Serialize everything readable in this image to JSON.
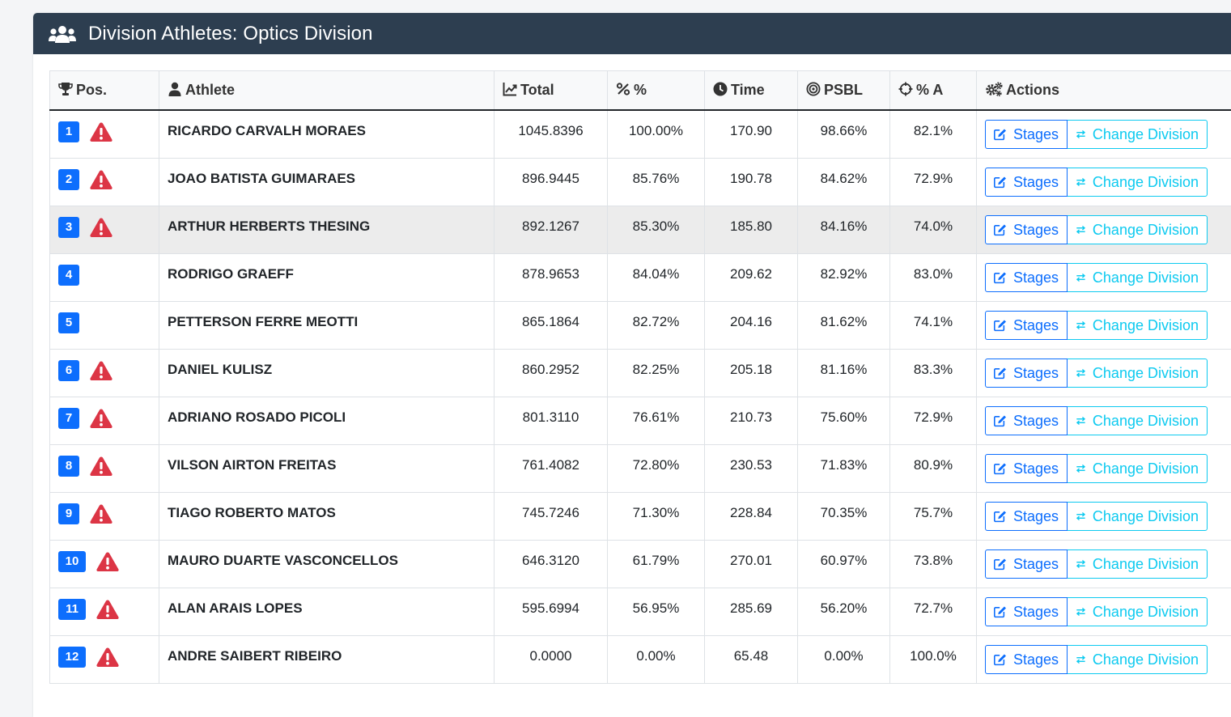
{
  "header": {
    "title": "Division Athletes: Optics Division",
    "icon": "users-icon"
  },
  "columns": {
    "pos": "Pos.",
    "athlete": "Athlete",
    "total": "Total",
    "pct": "%",
    "time": "Time",
    "psbl": "PSBL",
    "pct_a": "% A",
    "actions": "Actions"
  },
  "buttons": {
    "stages": "Stages",
    "change": "Change Division"
  },
  "colors": {
    "header_bg": "#2d3e50",
    "badge": "#0d6efd",
    "warning": "#dc3545",
    "stages_btn": "#0d6efd",
    "change_btn": "#0dcaf0"
  },
  "rows": [
    {
      "pos": "1",
      "warn": true,
      "name": "RICARDO CARVALH MORAES",
      "total": "1045.8396",
      "pct": "100.00%",
      "time": "170.90",
      "psbl": "98.66%",
      "pct_a": "82.1%"
    },
    {
      "pos": "2",
      "warn": true,
      "name": "JOAO BATISTA GUIMARAES",
      "total": "896.9445",
      "pct": "85.76%",
      "time": "190.78",
      "psbl": "84.62%",
      "pct_a": "72.9%"
    },
    {
      "pos": "3",
      "warn": true,
      "name": "ARTHUR HERBERTS THESING",
      "total": "892.1267",
      "pct": "85.30%",
      "time": "185.80",
      "psbl": "84.16%",
      "pct_a": "74.0%",
      "highlight": true
    },
    {
      "pos": "4",
      "warn": false,
      "name": "RODRIGO GRAEFF",
      "total": "878.9653",
      "pct": "84.04%",
      "time": "209.62",
      "psbl": "82.92%",
      "pct_a": "83.0%"
    },
    {
      "pos": "5",
      "warn": false,
      "name": "PETTERSON FERRE MEOTTI",
      "total": "865.1864",
      "pct": "82.72%",
      "time": "204.16",
      "psbl": "81.62%",
      "pct_a": "74.1%"
    },
    {
      "pos": "6",
      "warn": true,
      "name": "DANIEL KULISZ",
      "total": "860.2952",
      "pct": "82.25%",
      "time": "205.18",
      "psbl": "81.16%",
      "pct_a": "83.3%"
    },
    {
      "pos": "7",
      "warn": true,
      "name": "ADRIANO ROSADO PICOLI",
      "total": "801.3110",
      "pct": "76.61%",
      "time": "210.73",
      "psbl": "75.60%",
      "pct_a": "72.9%"
    },
    {
      "pos": "8",
      "warn": true,
      "name": "VILSON AIRTON FREITAS",
      "total": "761.4082",
      "pct": "72.80%",
      "time": "230.53",
      "psbl": "71.83%",
      "pct_a": "80.9%"
    },
    {
      "pos": "9",
      "warn": true,
      "name": "TIAGO ROBERTO MATOS",
      "total": "745.7246",
      "pct": "71.30%",
      "time": "228.84",
      "psbl": "70.35%",
      "pct_a": "75.7%"
    },
    {
      "pos": "10",
      "warn": true,
      "name": "MAURO DUARTE VASCONCELLOS",
      "total": "646.3120",
      "pct": "61.79%",
      "time": "270.01",
      "psbl": "60.97%",
      "pct_a": "73.8%"
    },
    {
      "pos": "11",
      "warn": true,
      "name": "ALAN ARAIS LOPES",
      "total": "595.6994",
      "pct": "56.95%",
      "time": "285.69",
      "psbl": "56.20%",
      "pct_a": "72.7%"
    },
    {
      "pos": "12",
      "warn": true,
      "name": "ANDRE SAIBERT RIBEIRO",
      "total": "0.0000",
      "pct": "0.00%",
      "time": "65.48",
      "psbl": "0.00%",
      "pct_a": "100.0%"
    }
  ]
}
